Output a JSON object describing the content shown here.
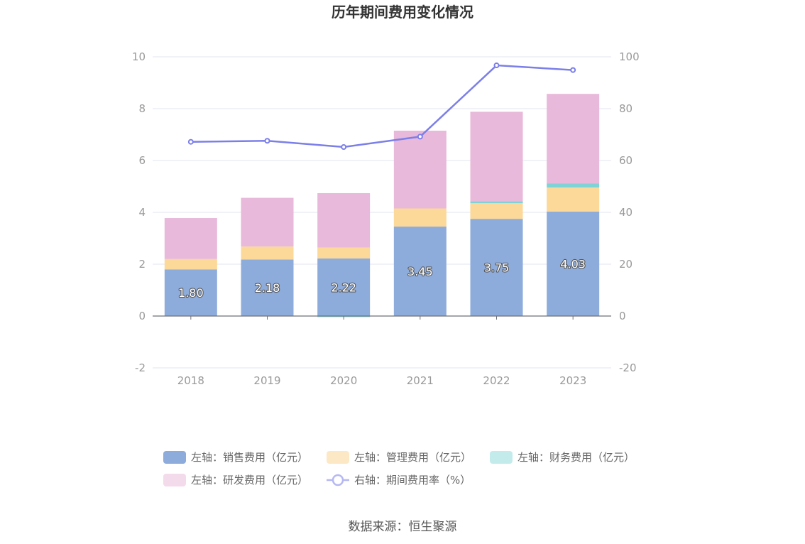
{
  "chart_data": {
    "type": "bar",
    "title": "历年期间费用变化情况",
    "categories": [
      "2018",
      "2019",
      "2020",
      "2021",
      "2022",
      "2023"
    ],
    "left_axis": {
      "min": -2,
      "max": 10,
      "ticks": [
        -2,
        0,
        2,
        4,
        6,
        8,
        10
      ]
    },
    "right_axis": {
      "min": -20,
      "max": 100,
      "ticks": [
        -20,
        0,
        20,
        40,
        60,
        80,
        100
      ]
    },
    "series": [
      {
        "name": "左轴：销售费用（亿元）",
        "type": "bar",
        "axis": "left",
        "color": "#8eacdb",
        "values": [
          1.8,
          2.18,
          2.22,
          3.45,
          3.75,
          4.03
        ],
        "labels": [
          "1.80",
          "2.18",
          "2.22",
          "3.45",
          "3.75",
          "4.03"
        ]
      },
      {
        "name": "左轴：管理费用（亿元）",
        "type": "bar",
        "axis": "left",
        "color": "#fcd899",
        "values": [
          0.4,
          0.5,
          0.42,
          0.7,
          0.6,
          0.93
        ]
      },
      {
        "name": "左轴：财务费用（亿元）",
        "type": "bar",
        "axis": "left",
        "color": "#7dd3d6",
        "values": [
          0.0,
          0.0,
          -0.04,
          0.0,
          0.08,
          0.16
        ]
      },
      {
        "name": "左轴：研发费用（亿元）",
        "type": "bar",
        "axis": "left",
        "color": "#e8b9da",
        "values": [
          1.58,
          1.88,
          2.1,
          3.0,
          3.45,
          3.45
        ]
      },
      {
        "name": "右轴：期间费用率（%）",
        "type": "line",
        "axis": "right",
        "color": "#7b7fe8",
        "values": [
          67.2,
          67.6,
          65.2,
          69.2,
          96.7,
          94.9
        ]
      }
    ],
    "legend_position": "bottom",
    "grid": true
  },
  "legend": {
    "items": [
      {
        "label": "左轴：销售费用（亿元）",
        "color": "#8eacdb",
        "shape": "rect"
      },
      {
        "label": "左轴：管理费用（亿元）",
        "color": "#fde8c6",
        "shape": "rect"
      },
      {
        "label": "左轴：财务费用（亿元）",
        "color": "#c4ebec",
        "shape": "rect"
      },
      {
        "label": "左轴：研发费用（亿元）",
        "color": "#f3dbec",
        "shape": "rect"
      },
      {
        "label": "右轴：期间费用率（%）",
        "color": "#b5b8f2",
        "shape": "line"
      }
    ]
  },
  "source": "数据来源：恒生聚源"
}
